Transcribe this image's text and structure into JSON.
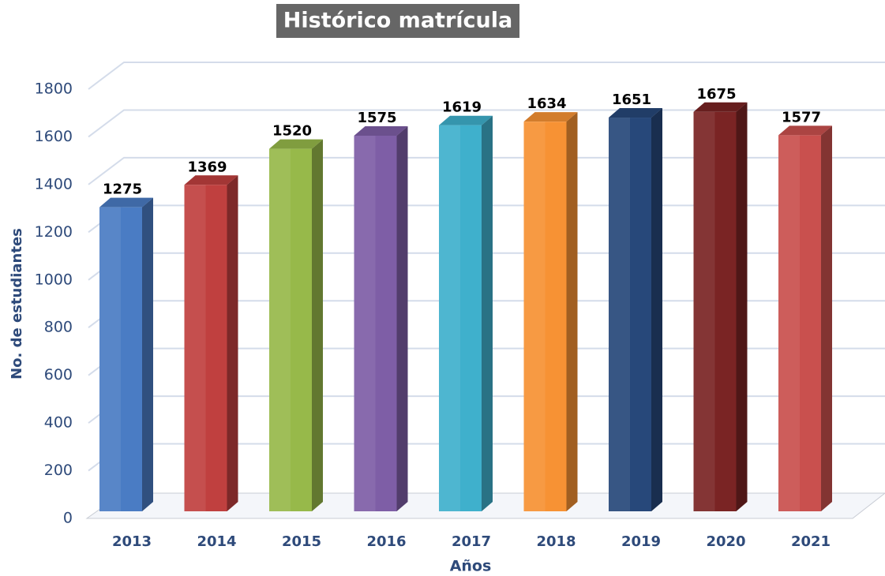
{
  "chart_data": {
    "type": "bar3d",
    "title": "Histórico matrícula",
    "x_label": "Años",
    "y_label": "No. de estudiantes",
    "categories": [
      "2013",
      "2014",
      "2015",
      "2016",
      "2017",
      "2018",
      "2019",
      "2020",
      "2021"
    ],
    "values": [
      1275,
      1369,
      1520,
      1575,
      1619,
      1634,
      1651,
      1675,
      1577
    ],
    "colors": [
      "#4a7cc4",
      "#c0403f",
      "#97b94a",
      "#7e5ea6",
      "#3fb0cc",
      "#f79234",
      "#27487a",
      "#7a2424",
      "#c9504e"
    ],
    "ylim": [
      0,
      1800
    ],
    "yticks": [
      0,
      200,
      400,
      600,
      800,
      1000,
      1200,
      1400,
      1600,
      1800
    ],
    "grid": true
  }
}
